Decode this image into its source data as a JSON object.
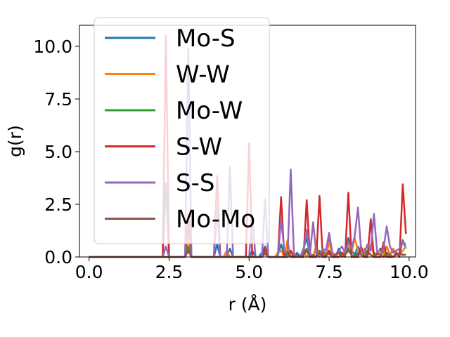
{
  "chart_data": {
    "type": "line",
    "xlabel": "r (Å)",
    "ylabel": "g(r)",
    "xlim": [
      -0.3,
      10.2
    ],
    "ylim": [
      0,
      11
    ],
    "xticks": [
      0.0,
      2.5,
      5.0,
      7.5,
      10.0
    ],
    "xtick_labels": [
      "0.0",
      "2.5",
      "5.0",
      "7.5",
      "10.0"
    ],
    "yticks": [
      0.0,
      2.5,
      5.0,
      7.5,
      10.0
    ],
    "ytick_labels": [
      "0.0",
      "2.5",
      "5.0",
      "7.5",
      "10.0"
    ],
    "grid": false,
    "legend_position": "upper-left",
    "series": [
      {
        "name": "Mo-S",
        "color": "#1f77b4",
        "x": [
          0.0,
          2.2,
          2.3,
          2.4,
          2.5,
          2.6,
          2.9,
          3.0,
          3.1,
          3.2,
          3.3,
          3.8,
          3.9,
          4.0,
          4.1,
          4.2,
          4.3,
          4.4,
          4.5,
          4.6,
          4.9,
          5.0,
          5.1,
          5.2,
          5.3,
          5.4,
          5.5,
          5.6,
          5.7,
          5.8,
          5.9,
          6.0,
          6.1,
          6.2,
          6.3,
          6.4,
          6.5,
          6.6,
          6.7,
          6.8,
          6.9,
          7.0,
          7.1,
          7.2,
          7.3,
          7.4,
          7.5,
          7.6,
          7.7,
          7.8,
          7.9,
          8.0,
          8.1,
          8.2,
          8.3,
          8.4,
          8.5,
          8.6,
          8.7,
          8.8,
          8.9,
          9.0,
          9.1,
          9.2,
          9.3,
          9.4,
          9.5,
          9.6,
          9.7,
          9.8,
          9.9
        ],
        "y": [
          0,
          0,
          0,
          3.5,
          0,
          0,
          0,
          0,
          1.2,
          0,
          0,
          0,
          0,
          0.6,
          0,
          0,
          0,
          0.4,
          0,
          0,
          0,
          0,
          0.3,
          0,
          0,
          0.2,
          0.5,
          0,
          0,
          0,
          0.1,
          0.6,
          0.1,
          0,
          0.3,
          0,
          0.2,
          0,
          0.4,
          0.9,
          0.1,
          0,
          0.5,
          0,
          0.3,
          0.1,
          0.8,
          0.2,
          0,
          0.4,
          0.1,
          0.2,
          0.9,
          0.3,
          0.1,
          0.5,
          0.2,
          0.3,
          0.1,
          0.6,
          0.2,
          0.1,
          0.4,
          0.2,
          0.5,
          0.1,
          0.3,
          0.2,
          0.1,
          0.8,
          0.4
        ]
      },
      {
        "name": "W-W",
        "color": "#ff7f0e",
        "x": [
          0.0,
          2.9,
          3.0,
          3.1,
          3.2,
          3.3,
          4.1,
          4.2,
          4.3,
          4.4,
          4.5,
          5.3,
          5.4,
          5.5,
          5.6,
          5.7,
          5.8,
          5.9,
          6.0,
          6.1,
          6.2,
          6.3,
          6.4,
          6.5,
          6.6,
          6.7,
          6.8,
          6.9,
          7.0,
          7.1,
          7.2,
          7.3,
          7.4,
          7.5,
          7.6,
          7.7,
          7.8,
          7.9,
          8.0,
          8.1,
          8.2,
          8.3,
          8.4,
          8.5,
          8.6,
          8.7,
          8.8,
          8.9,
          9.0,
          9.1,
          9.2,
          9.3,
          9.4,
          9.5,
          9.6,
          9.7,
          9.8,
          9.9
        ],
        "y": [
          0,
          0,
          0,
          0.9,
          0,
          0,
          0,
          0,
          0.3,
          0,
          0,
          0,
          0,
          0.4,
          0,
          0,
          0,
          0.2,
          0.3,
          0,
          0.8,
          0,
          0.2,
          0,
          0,
          0.3,
          0,
          0.2,
          0,
          0.6,
          0,
          0.2,
          0,
          0.7,
          0.1,
          0,
          0.2,
          0.1,
          0.3,
          0.5,
          0.2,
          0.9,
          0.3,
          0.1,
          0.4,
          0.2,
          0.6,
          0.1,
          0.2,
          0.3,
          0.1,
          0.5,
          0.1,
          0.4,
          0.2,
          0.1,
          0.3,
          0.5
        ]
      },
      {
        "name": "Mo-W",
        "color": "#2ca02c",
        "x": [
          0.0,
          2.9,
          3.0,
          3.1,
          3.2,
          3.3,
          5.3,
          5.4,
          5.5,
          5.6,
          5.7,
          6.1,
          6.2,
          6.3,
          6.4,
          6.5,
          6.6,
          6.7,
          6.8,
          6.9,
          7.0,
          7.1,
          7.2,
          7.3,
          7.4,
          7.5,
          7.6,
          7.7,
          7.8,
          7.9,
          8.0,
          8.1,
          8.2,
          8.3,
          8.4,
          8.5,
          8.6,
          8.7,
          8.8,
          8.9,
          9.0,
          9.1,
          9.2,
          9.3,
          9.4,
          9.5,
          9.6,
          9.7,
          9.8,
          9.9
        ],
        "y": [
          0,
          0,
          0,
          0.5,
          0,
          0,
          0,
          0,
          0.2,
          0,
          0,
          0,
          0.3,
          0,
          0,
          0.1,
          0,
          0.2,
          0.4,
          0,
          0.1,
          0,
          0.3,
          0,
          0.1,
          0.2,
          0,
          0.1,
          0.3,
          0,
          0.1,
          0.4,
          0.1,
          0,
          0.2,
          0.1,
          0,
          0.3,
          0.1,
          0,
          0.2,
          0.1,
          0,
          0.2,
          0.1,
          0,
          0.1,
          0.2,
          0.1,
          0.1
        ]
      },
      {
        "name": "S-W",
        "color": "#d62728",
        "x": [
          0.0,
          2.2,
          2.3,
          2.4,
          2.5,
          2.6,
          3.0,
          3.1,
          3.2,
          3.9,
          4.0,
          4.1,
          4.9,
          5.0,
          5.1,
          5.2,
          5.3,
          5.4,
          5.5,
          5.6,
          5.7,
          5.8,
          5.9,
          6.0,
          6.1,
          6.2,
          6.3,
          6.4,
          6.5,
          6.6,
          6.7,
          6.8,
          6.9,
          7.0,
          7.1,
          7.2,
          7.3,
          7.4,
          7.5,
          7.6,
          7.7,
          7.8,
          7.9,
          8.0,
          8.1,
          8.2,
          8.3,
          8.4,
          8.5,
          8.6,
          8.7,
          8.8,
          8.9,
          9.0,
          9.1,
          9.2,
          9.3,
          9.4,
          9.5,
          9.6,
          9.7,
          9.8,
          9.9
        ],
        "y": [
          0,
          0,
          0,
          10.5,
          0,
          0,
          0,
          2.0,
          0,
          0,
          3.85,
          0,
          0,
          5.4,
          0,
          0,
          0,
          0,
          0.4,
          0,
          0,
          0,
          0,
          2.85,
          0,
          0,
          0.3,
          0,
          0,
          0,
          0,
          2.7,
          0,
          0,
          0,
          2.9,
          0,
          0,
          0.3,
          0,
          0,
          0,
          0.2,
          0,
          3.05,
          0,
          0,
          0,
          0.5,
          0,
          0,
          1.8,
          0,
          0,
          0,
          0.7,
          0,
          0,
          0,
          0.2,
          0,
          3.45,
          1.1
        ]
      },
      {
        "name": "S-S",
        "color": "#9467bd",
        "x": [
          0.0,
          2.2,
          2.3,
          2.4,
          2.5,
          2.6,
          2.9,
          3.0,
          3.1,
          3.2,
          3.3,
          3.8,
          3.9,
          4.0,
          4.1,
          4.2,
          4.3,
          4.4,
          4.5,
          4.6,
          4.9,
          5.0,
          5.1,
          5.2,
          5.3,
          5.4,
          5.5,
          5.6,
          5.7,
          5.8,
          5.9,
          6.0,
          6.1,
          6.2,
          6.3,
          6.4,
          6.5,
          6.6,
          6.7,
          6.8,
          6.9,
          7.0,
          7.1,
          7.2,
          7.3,
          7.4,
          7.5,
          7.6,
          7.7,
          7.8,
          7.9,
          8.0,
          8.1,
          8.2,
          8.3,
          8.4,
          8.5,
          8.6,
          8.7,
          8.8,
          8.9,
          9.0,
          9.1,
          9.2,
          9.3,
          9.4,
          9.5,
          9.6,
          9.7,
          9.8,
          9.9
        ],
        "y": [
          0,
          0,
          0,
          0.5,
          0,
          0,
          0,
          0,
          9.9,
          0,
          0,
          0,
          0,
          2.3,
          0,
          0,
          0,
          4.3,
          0,
          0,
          0,
          0,
          2.0,
          0,
          0,
          0,
          2.75,
          0,
          0,
          0,
          0,
          1.8,
          0.3,
          0,
          4.15,
          0.2,
          0,
          0,
          0.3,
          1.3,
          0.1,
          1.65,
          0.2,
          0,
          0.4,
          0.3,
          1.15,
          0.2,
          0.1,
          0.3,
          0.5,
          0.2,
          0.7,
          0.4,
          1.0,
          2.35,
          0.3,
          0.2,
          0.6,
          0.3,
          2.05,
          0.2,
          0.1,
          0.4,
          1.45,
          0.5,
          0.2,
          0.3,
          0.4,
          0.7,
          0.6
        ]
      },
      {
        "name": "Mo-Mo",
        "color": "#8c564b",
        "x": [
          0.0,
          2.9,
          3.0,
          3.1,
          3.2,
          3.3,
          5.3,
          5.4,
          5.5,
          5.6,
          5.7,
          6.1,
          6.2,
          6.3,
          6.4,
          6.5,
          6.6,
          6.7,
          6.8,
          6.9,
          7.0,
          7.1,
          7.2,
          7.3,
          7.4,
          7.5,
          7.6,
          7.7,
          7.8,
          7.9,
          8.0,
          8.1,
          8.2,
          8.3,
          8.4,
          8.5,
          8.6,
          8.7,
          8.8,
          8.9,
          9.0,
          9.1,
          9.2,
          9.3,
          9.4,
          9.5,
          9.6,
          9.7,
          9.8,
          9.9
        ],
        "y": [
          0,
          0,
          0,
          0.3,
          0,
          0,
          0,
          0,
          0.15,
          0,
          0,
          0,
          0.2,
          0,
          0,
          0.1,
          0,
          0.1,
          0.3,
          0,
          0.1,
          0,
          0.2,
          0,
          0.1,
          0.15,
          0,
          0.1,
          0.2,
          0,
          0.1,
          0.3,
          0.1,
          0,
          0.15,
          0.1,
          0,
          0.2,
          0.1,
          0,
          0.15,
          0.1,
          0,
          0.1,
          0.1,
          0,
          0.1,
          0.15,
          0.1,
          0.1
        ]
      }
    ]
  }
}
